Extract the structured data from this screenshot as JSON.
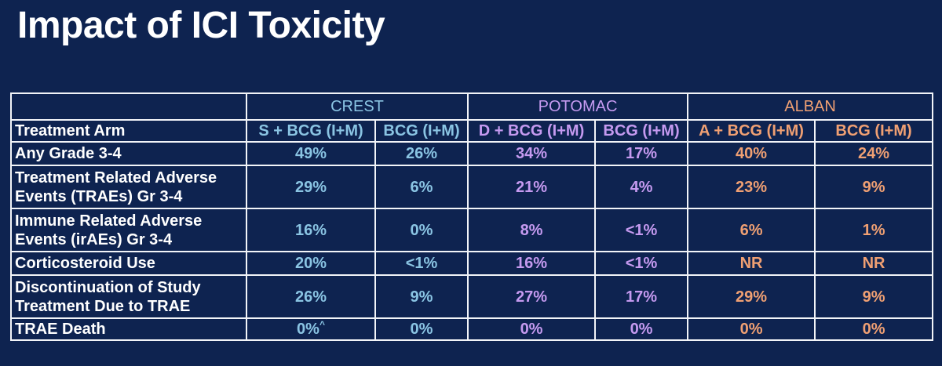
{
  "title": "Impact of ICI Toxicity",
  "colors": {
    "background": "#0e2350",
    "crest": "#8ac4e3",
    "potomac": "#c59af0",
    "alban": "#f0a073",
    "border": "#f2f4f8"
  },
  "table": {
    "groups": [
      "CREST",
      "POTOMAC",
      "ALBAN"
    ],
    "arm_row_label": "Treatment Arm",
    "arms": [
      "S + BCG (I+M)",
      "BCG (I+M)",
      "D + BCG (I+M)",
      "BCG (I+M)",
      "A + BCG (I+M)",
      "BCG (I+M)"
    ],
    "rows": [
      {
        "label": "Any Grade 3-4",
        "values": [
          "49%",
          "26%",
          "34%",
          "17%",
          "40%",
          "24%"
        ]
      },
      {
        "label_lines": [
          "Treatment Related Adverse",
          "Events (TRAEs) Gr 3-4"
        ],
        "values": [
          "29%",
          "6%",
          "21%",
          "4%",
          "23%",
          "9%"
        ]
      },
      {
        "label_lines": [
          "Immune Related Adverse",
          "Events (irAEs) Gr 3-4"
        ],
        "values": [
          "16%",
          "0%",
          "8%",
          "<1%",
          "6%",
          "1%"
        ]
      },
      {
        "label": "Corticosteroid Use",
        "values": [
          "20%",
          "<1%",
          "16%",
          "<1%",
          "NR",
          "NR"
        ]
      },
      {
        "label_lines": [
          "Discontinuation of Study",
          "Treatment Due to TRAE"
        ],
        "values": [
          "26%",
          "9%",
          "27%",
          "17%",
          "29%",
          "9%"
        ]
      },
      {
        "label": "TRAE Death",
        "values": [
          "0%",
          "0%",
          "0%",
          "0%",
          "0%",
          "0%"
        ],
        "first_value_superscript": "^"
      }
    ]
  }
}
